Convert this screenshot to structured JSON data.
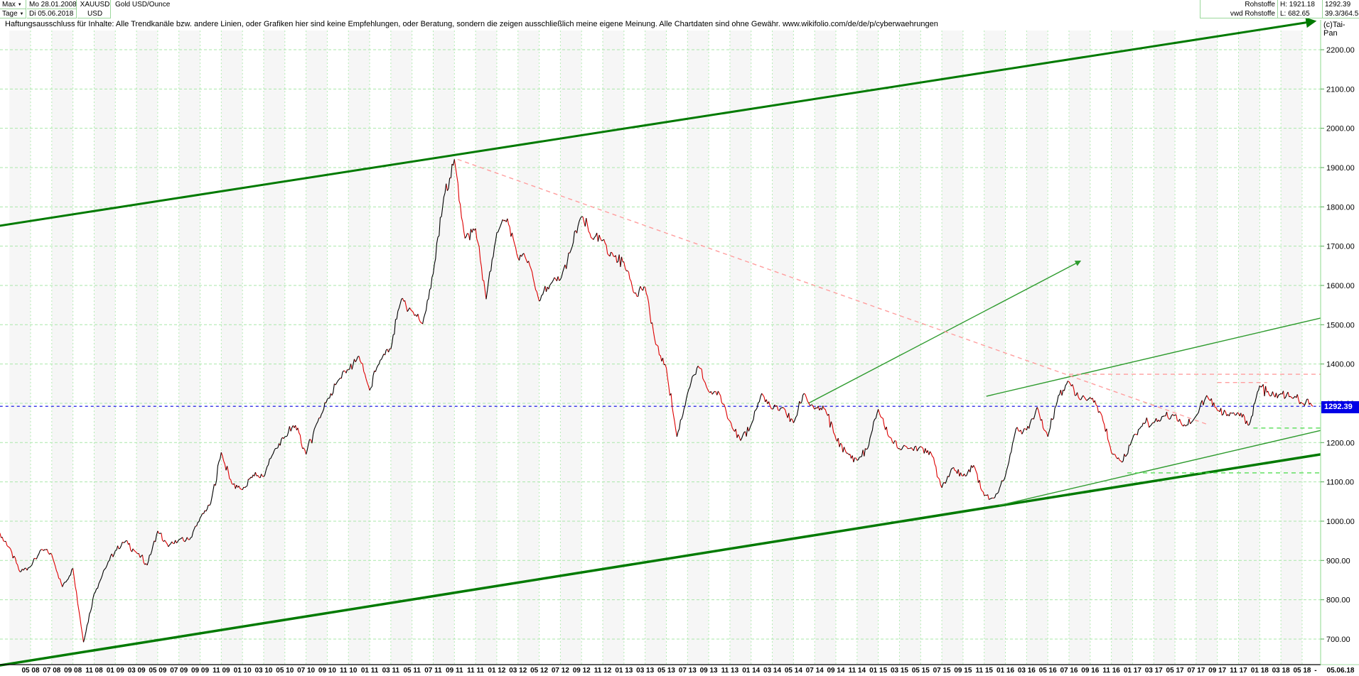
{
  "header": {
    "range_selector": "Max",
    "period_selector": "Tage",
    "dropdown_arrow": "▼",
    "start_date": "Mo 28.01.2008",
    "end_date": "Di 05.06.2018",
    "symbol": "XAUUSD",
    "currency": "USD",
    "title": "Gold USD/Ounce",
    "feed_line1": "Rohstoffe",
    "feed_line2": "vwd Rohstoffe",
    "high_label": "H: 1921.18",
    "low_label": "L: 682.65",
    "last_price": "1292.39",
    "stat_value": "39.3/364.5",
    "copyright": "(c)Tai-Pan"
  },
  "disclaimer": "Haftungsausschluss für Inhalte: Alle Trendkanäle bzw. andere Linien, oder Grafiken hier sind keine Empfehlungen, oder Beratung, sondern die zeigen ausschließlich meine eigene Meinung. Alle Chartdaten sind ohne Gewähr.  www.wikifolio.com/de/de/p/cyberwaehrungen",
  "badge": {
    "value": "1292.39",
    "bg": "#0000e6"
  },
  "axis": {
    "price_labels": [
      "2200.00",
      "2100.00",
      "2000.00",
      "1900.00",
      "1800.00",
      "1700.00",
      "1600.00",
      "1500.00",
      "1400.00",
      "1300.00",
      "1200.00",
      "1100.00",
      "1000.00",
      "900.00",
      "800.00",
      "700.00"
    ],
    "date_labels": [
      "05 08",
      "07 08",
      "09 08",
      "11 08",
      "01 09",
      "03 09",
      "05 09",
      "07 09",
      "09 09",
      "11 09",
      "01 10",
      "03 10",
      "05 10",
      "07 10",
      "09 10",
      "11 10",
      "01 11",
      "03 11",
      "05 11",
      "07 11",
      "09 11",
      "11 11",
      "01 12",
      "03 12",
      "05 12",
      "07 12",
      "09 12",
      "11 12",
      "01 13",
      "03 13",
      "05 13",
      "07 13",
      "09 13",
      "11 13",
      "01 14",
      "03 14",
      "05 14",
      "07 14",
      "09 14",
      "11 14",
      "01 15",
      "03 15",
      "05 15",
      "07 15",
      "09 15",
      "11 15",
      "01 16",
      "03 16",
      "05 16",
      "07 16",
      "09 16",
      "11 16",
      "01 17",
      "03 17",
      "05 17",
      "07 17",
      "09 17",
      "11 17",
      "01 18",
      "03 18",
      "05 18"
    ],
    "separator": "-",
    "corner_date": "05.06.18"
  },
  "chart_data": {
    "type": "line",
    "title": "Gold USD/Ounce",
    "instrument": "XAUUSD",
    "x_start": "2008-02",
    "x_end": "2018-06",
    "ylim": [
      650,
      2280
    ],
    "price_top": 2200,
    "price_step": 100,
    "high": 1921.18,
    "low": 682.65,
    "last": 1292.39,
    "series_start_month_offset": -3,
    "monthly_close": [
      971,
      933,
      871,
      885,
      928,
      915,
      833,
      880,
      692,
      815,
      878,
      925,
      950,
      920,
      888,
      975,
      935,
      953,
      953,
      1008,
      1045,
      1175,
      1095,
      1080,
      1118,
      1113,
      1180,
      1215,
      1244,
      1170,
      1248,
      1310,
      1357,
      1385,
      1420,
      1333,
      1410,
      1438,
      1565,
      1535,
      1502,
      1630,
      1825,
      1921,
      1720,
      1745,
      1565,
      1735,
      1770,
      1670,
      1662,
      1560,
      1600,
      1615,
      1690,
      1775,
      1720,
      1715,
      1675,
      1660,
      1580,
      1595,
      1450,
      1390,
      1215,
      1325,
      1395,
      1330,
      1325,
      1255,
      1205,
      1245,
      1325,
      1285,
      1290,
      1250,
      1325,
      1285,
      1285,
      1210,
      1173,
      1155,
      1185,
      1285,
      1215,
      1185,
      1185,
      1190,
      1172,
      1085,
      1135,
      1115,
      1142,
      1065,
      1060,
      1115,
      1235,
      1232,
      1290,
      1215,
      1320,
      1355,
      1310,
      1315,
      1275,
      1175,
      1150,
      1210,
      1250,
      1250,
      1268,
      1270,
      1242,
      1268,
      1320,
      1282,
      1272,
      1275,
      1245,
      1345,
      1318,
      1325,
      1315,
      1300,
      1292.39
    ],
    "colors": {
      "up": "#000000",
      "down": "#dd0000",
      "trend_dark_green": "#007a00",
      "trend_mid_green": "#2e9b2e",
      "dash_green": "#55dd55",
      "dash_pink": "#ff9e9e",
      "last_blue": "#0000e0",
      "grid": "#a9e7a9",
      "stripe": "#f6f6f6"
    },
    "annotations": [
      {
        "name": "channel-upper-thick",
        "color": "#007a00",
        "width": 3,
        "dash": null,
        "arrow": true,
        "pts": [
          [
            -2.9,
            1752
          ],
          [
            121.07,
            2272
          ]
        ]
      },
      {
        "name": "channel-lower-thick",
        "color": "#007a00",
        "width": 3.5,
        "dash": null,
        "arrow": false,
        "pts": [
          [
            -2.9,
            633
          ],
          [
            121.75,
            1170
          ]
        ]
      },
      {
        "name": "fan-line-steep",
        "color": "#2e9b2e",
        "width": 1.4,
        "dash": null,
        "arrow": true,
        "pts": [
          [
            73.4,
            1300
          ],
          [
            99.0,
            1661
          ]
        ]
      },
      {
        "name": "mini-channel-upper",
        "color": "#2e9b2e",
        "width": 1.4,
        "dash": null,
        "arrow": false,
        "pts": [
          [
            90.2,
            1318
          ],
          [
            121.75,
            1517
          ]
        ]
      },
      {
        "name": "mini-channel-lower",
        "color": "#2e9b2e",
        "width": 1.4,
        "dash": null,
        "arrow": false,
        "pts": [
          [
            91.4,
            1040
          ],
          [
            121.75,
            1231
          ]
        ]
      },
      {
        "name": "resistance-descending",
        "color": "#ff9e9e",
        "width": 1.4,
        "dash": "6,5",
        "arrow": false,
        "pts": [
          [
            40.3,
            1921
          ],
          [
            111.2,
            1245
          ]
        ]
      },
      {
        "name": "resistance-horizontal-2016",
        "color": "#ff9e9e",
        "width": 1.4,
        "dash": "6,5",
        "arrow": false,
        "pts": [
          [
            98,
            1374
          ],
          [
            121.75,
            1374
          ]
        ]
      },
      {
        "name": "resistance-horizontal-2017",
        "color": "#ff9e9e",
        "width": 1.4,
        "dash": "6,5",
        "arrow": false,
        "pts": [
          [
            112,
            1353
          ],
          [
            116.7,
            1353
          ]
        ]
      },
      {
        "name": "support-dash-2016-low",
        "color": "#55dd55",
        "width": 1.4,
        "dash": "6,5",
        "arrow": false,
        "pts": [
          [
            103.5,
            1123
          ],
          [
            121.75,
            1123
          ]
        ]
      },
      {
        "name": "support-dash-2017-low",
        "color": "#55dd55",
        "width": 1.4,
        "dash": "6,5",
        "arrow": false,
        "pts": [
          [
            115.4,
            1237
          ],
          [
            121.75,
            1237
          ]
        ]
      },
      {
        "name": "last-price-line",
        "color": "#0000e0",
        "width": 1.2,
        "dash": "4,4",
        "arrow": false,
        "pts": [
          [
            -2.9,
            1292.39
          ],
          [
            121.75,
            1292.39
          ]
        ]
      }
    ]
  }
}
